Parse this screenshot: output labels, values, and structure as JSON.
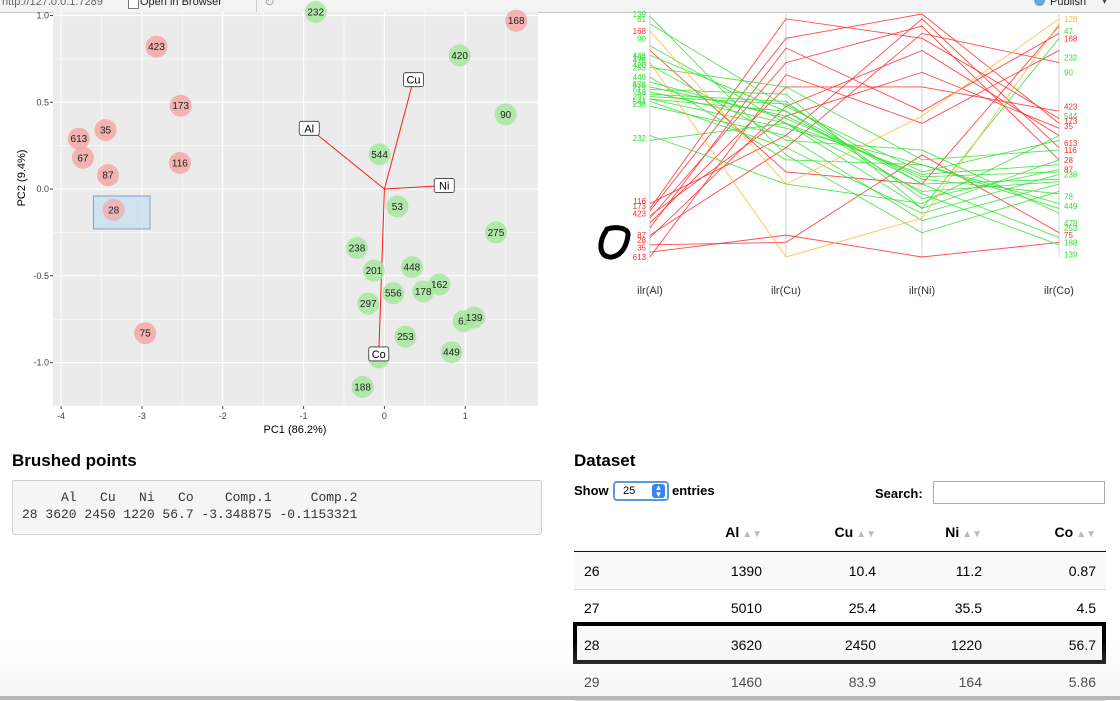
{
  "browser": {
    "url": "http://127.0.0.1:7289",
    "open_in_browser": "Open in Browser",
    "publish": "Publish"
  },
  "biplot": {
    "x_label": "PC1 (86.2%)",
    "y_label": "PC2 (9.4%)",
    "x_ticks": [
      -4,
      -3,
      -2,
      -1,
      0,
      1
    ],
    "y_ticks": [
      "1.0",
      "0.5",
      "0.0",
      "-0.5",
      "-1.0"
    ],
    "xlim": [
      -4.1,
      1.9
    ],
    "ylim": [
      -1.25,
      1.02
    ],
    "colors": {
      "red": "#f4a7a4",
      "green": "#a8e6a0",
      "arrow": "#ff1a1a",
      "panel": "#ebebeb",
      "brush": "#c9def1"
    },
    "brush": {
      "x": [
        -3.6,
        -2.9
      ],
      "y": [
        -0.23,
        -0.04
      ]
    },
    "points": [
      {
        "id": "232",
        "x": -0.85,
        "y": 1.02,
        "color": "green"
      },
      {
        "id": "168",
        "x": 1.63,
        "y": 0.97,
        "color": "red"
      },
      {
        "id": "423",
        "x": -2.82,
        "y": 0.82,
        "color": "red"
      },
      {
        "id": "420",
        "x": 0.93,
        "y": 0.77,
        "color": "green"
      },
      {
        "id": "173",
        "x": -2.52,
        "y": 0.48,
        "color": "red"
      },
      {
        "id": "90",
        "x": 1.5,
        "y": 0.43,
        "color": "green"
      },
      {
        "id": "35",
        "x": -3.45,
        "y": 0.34,
        "color": "red"
      },
      {
        "id": "613",
        "x": -3.78,
        "y": 0.29,
        "color": "red"
      },
      {
        "id": "67",
        "x": -3.73,
        "y": 0.18,
        "color": "red"
      },
      {
        "id": "544",
        "x": -0.06,
        "y": 0.2,
        "color": "green"
      },
      {
        "id": "116",
        "x": -2.53,
        "y": 0.15,
        "color": "red"
      },
      {
        "id": "87",
        "x": -3.42,
        "y": 0.08,
        "color": "red"
      },
      {
        "id": "28",
        "x": -3.35,
        "y": -0.12,
        "color": "red"
      },
      {
        "id": "53",
        "x": 0.16,
        "y": -0.1,
        "color": "green"
      },
      {
        "id": "275",
        "x": 1.38,
        "y": -0.25,
        "color": "green"
      },
      {
        "id": "238",
        "x": -0.34,
        "y": -0.34,
        "color": "green"
      },
      {
        "id": "201",
        "x": -0.13,
        "y": -0.47,
        "color": "green"
      },
      {
        "id": "448",
        "x": 0.34,
        "y": -0.45,
        "color": "green"
      },
      {
        "id": "162",
        "x": 0.68,
        "y": -0.55,
        "color": "green"
      },
      {
        "id": "556",
        "x": 0.11,
        "y": -0.6,
        "color": "green"
      },
      {
        "id": "178",
        "x": 0.48,
        "y": -0.59,
        "color": "green"
      },
      {
        "id": "297",
        "x": -0.2,
        "y": -0.66,
        "color": "green"
      },
      {
        "id": "61",
        "x": 0.98,
        "y": -0.76,
        "color": "green"
      },
      {
        "id": "139",
        "x": 1.11,
        "y": -0.74,
        "color": "green"
      },
      {
        "id": "75",
        "x": -2.96,
        "y": -0.83,
        "color": "red"
      },
      {
        "id": "253",
        "x": 0.26,
        "y": -0.85,
        "color": "green"
      },
      {
        "id": "449",
        "x": 0.83,
        "y": -0.94,
        "color": "green"
      },
      {
        "id": "478",
        "x": -0.07,
        "y": -0.97,
        "color": "green"
      },
      {
        "id": "188",
        "x": -0.27,
        "y": -1.14,
        "color": "green"
      }
    ],
    "arrows": [
      {
        "label": "Cu",
        "x": 0.36,
        "y": 0.63
      },
      {
        "label": "Al",
        "x": -0.93,
        "y": 0.35
      },
      {
        "label": "Ni",
        "x": 0.74,
        "y": 0.02
      },
      {
        "label": "Co",
        "x": -0.07,
        "y": -0.95
      }
    ]
  },
  "parcoord": {
    "axes": [
      "ilr(Al)",
      "ilr(Cu)",
      "ilr(Ni)",
      "ilr(Co)"
    ],
    "colors": {
      "red": "#ff2a2a",
      "green": "#33e033",
      "orange": "#ffb732",
      "axis": "#d0d0d0"
    },
    "series": [
      {
        "color": "red",
        "v": [
          0.19,
          0.9,
          1.0,
          0.55
        ]
      },
      {
        "color": "red",
        "v": [
          0.16,
          0.8,
          0.95,
          0.4
        ]
      },
      {
        "color": "red",
        "v": [
          0.2,
          0.98,
          0.9,
          0.57
        ]
      },
      {
        "color": "red",
        "v": [
          0.08,
          0.62,
          0.85,
          0.5
        ]
      },
      {
        "color": "red",
        "v": [
          0.22,
          0.5,
          0.98,
          0.45
        ]
      },
      {
        "color": "red",
        "v": [
          0.17,
          0.58,
          0.76,
          0.53
        ]
      },
      {
        "color": "red",
        "v": [
          0.05,
          0.06,
          0.42,
          0.1
        ]
      },
      {
        "color": "red",
        "v": [
          0.0,
          0.75,
          0.55,
          0.85
        ]
      },
      {
        "color": "red",
        "v": [
          0.02,
          0.09,
          0.0,
          0.06
        ]
      },
      {
        "color": "red",
        "v": [
          0.12,
          0.86,
          0.6,
          0.92
        ]
      },
      {
        "color": "red",
        "v": [
          0.09,
          0.45,
          0.92,
          0.8
        ]
      },
      {
        "color": "red",
        "v": [
          0.14,
          0.7,
          0.7,
          0.6
        ]
      },
      {
        "color": "red",
        "v": [
          0.85,
          0.35,
          0.3,
          0.95
        ]
      },
      {
        "color": "green",
        "v": [
          0.96,
          0.62,
          0.35,
          0.48
        ]
      },
      {
        "color": "green",
        "v": [
          0.87,
          0.55,
          0.34,
          0.38
        ]
      },
      {
        "color": "green",
        "v": [
          0.83,
          0.6,
          0.3,
          0.32
        ]
      },
      {
        "color": "green",
        "v": [
          0.78,
          0.7,
          0.4,
          0.44
        ]
      },
      {
        "color": "green",
        "v": [
          0.79,
          0.48,
          0.44,
          0.18
        ]
      },
      {
        "color": "green",
        "v": [
          0.74,
          0.4,
          0.38,
          0.22
        ]
      },
      {
        "color": "green",
        "v": [
          0.72,
          0.57,
          0.33,
          0.35
        ]
      },
      {
        "color": "green",
        "v": [
          0.7,
          0.58,
          0.32,
          0.26
        ]
      },
      {
        "color": "green",
        "v": [
          0.69,
          0.67,
          0.2,
          0.4
        ]
      },
      {
        "color": "green",
        "v": [
          0.68,
          0.55,
          0.27,
          0.31
        ]
      },
      {
        "color": "green",
        "v": [
          0.67,
          0.64,
          0.24,
          0.36
        ]
      },
      {
        "color": "green",
        "v": [
          0.66,
          0.63,
          0.3,
          0.08
        ]
      },
      {
        "color": "green",
        "v": [
          0.65,
          0.53,
          0.38,
          0.2
        ]
      },
      {
        "color": "green",
        "v": [
          0.65,
          0.6,
          0.26,
          0.05
        ]
      },
      {
        "color": "green",
        "v": [
          0.64,
          0.45,
          0.18,
          0.34
        ]
      },
      {
        "color": "green",
        "v": [
          0.62,
          0.5,
          0.15,
          0.3
        ]
      },
      {
        "color": "green",
        "v": [
          0.5,
          0.3,
          0.22,
          0.5
        ]
      },
      {
        "color": "green",
        "v": [
          0.48,
          0.55,
          0.2,
          0.9
        ]
      },
      {
        "color": "green",
        "v": [
          0.99,
          0.42,
          0.1,
          0.27
        ]
      },
      {
        "color": "orange",
        "v": [
          0.93,
          0.3,
          0.58,
          0.98
        ]
      },
      {
        "color": "orange",
        "v": [
          0.8,
          0.0,
          0.16,
          0.96
        ]
      }
    ],
    "left_labels": [
      {
        "id": "139",
        "v": 1.0,
        "color": "green"
      },
      {
        "id": "61",
        "v": 0.98,
        "color": "green"
      },
      {
        "id": "168",
        "v": 0.93,
        "color": "red"
      },
      {
        "id": "90",
        "v": 0.9,
        "color": "green"
      },
      {
        "id": "448",
        "v": 0.83,
        "color": "green"
      },
      {
        "id": "162",
        "v": 0.82,
        "color": "green"
      },
      {
        "id": "478",
        "v": 0.81,
        "color": "green"
      },
      {
        "id": "420",
        "v": 0.79,
        "color": "green"
      },
      {
        "id": "253",
        "v": 0.78,
        "color": "green"
      },
      {
        "id": "448",
        "v": 0.74,
        "color": "green"
      },
      {
        "id": "556",
        "v": 0.71,
        "color": "green"
      },
      {
        "id": "471",
        "v": 0.71,
        "color": "green"
      },
      {
        "id": "613",
        "v": 0.69,
        "color": "green"
      },
      {
        "id": "53",
        "v": 0.68,
        "color": "green"
      },
      {
        "id": "297",
        "v": 0.66,
        "color": "green"
      },
      {
        "id": "544",
        "v": 0.64,
        "color": "green"
      },
      {
        "id": "238",
        "v": 0.63,
        "color": "green"
      },
      {
        "id": "232",
        "v": 0.49,
        "color": "green"
      },
      {
        "id": "116",
        "v": 0.23,
        "color": "red"
      },
      {
        "id": "173",
        "v": 0.21,
        "color": "red"
      },
      {
        "id": "423",
        "v": 0.18,
        "color": "red"
      },
      {
        "id": "87",
        "v": 0.09,
        "color": "red"
      },
      {
        "id": "28",
        "v": 0.07,
        "color": "red"
      },
      {
        "id": "35",
        "v": 0.04,
        "color": "red"
      },
      {
        "id": "613",
        "v": 0.0,
        "color": "red"
      }
    ],
    "right_labels": [
      {
        "id": "128",
        "v": 0.98,
        "color": "orange"
      },
      {
        "id": "47",
        "v": 0.93,
        "color": "green"
      },
      {
        "id": "168",
        "v": 0.9,
        "color": "red"
      },
      {
        "id": "232",
        "v": 0.82,
        "color": "green"
      },
      {
        "id": "90",
        "v": 0.76,
        "color": "green"
      },
      {
        "id": "423",
        "v": 0.62,
        "color": "red"
      },
      {
        "id": "544",
        "v": 0.58,
        "color": "green"
      },
      {
        "id": "173",
        "v": 0.56,
        "color": "red"
      },
      {
        "id": "35",
        "v": 0.54,
        "color": "red"
      },
      {
        "id": "613",
        "v": 0.47,
        "color": "red"
      },
      {
        "id": "116",
        "v": 0.44,
        "color": "red"
      },
      {
        "id": "28",
        "v": 0.4,
        "color": "red"
      },
      {
        "id": "87",
        "v": 0.36,
        "color": "red"
      },
      {
        "id": "238",
        "v": 0.34,
        "color": "green"
      },
      {
        "id": "78",
        "v": 0.25,
        "color": "green"
      },
      {
        "id": "449",
        "v": 0.21,
        "color": "green"
      },
      {
        "id": "478",
        "v": 0.14,
        "color": "green"
      },
      {
        "id": "253",
        "v": 0.12,
        "color": "green"
      },
      {
        "id": "75",
        "v": 0.09,
        "color": "red"
      },
      {
        "id": "188",
        "v": 0.06,
        "color": "green"
      },
      {
        "id": "139",
        "v": 0.01,
        "color": "green"
      }
    ]
  },
  "brushed": {
    "title": "Brushed points",
    "output": "     Al   Cu   Ni   Co    Comp.1     Comp.2\n28 3620 2450 1220 56.7 -3.348875 -0.1153321"
  },
  "dataset": {
    "title": "Dataset",
    "show_label": "Show",
    "entries_value": "25",
    "entries_label": "entries",
    "search_label": "Search:",
    "search_value": "",
    "columns": [
      "",
      "Al",
      "Cu",
      "Ni",
      "Co"
    ],
    "rows": [
      [
        "26",
        "1390",
        "10.4",
        "11.2",
        "0.87"
      ],
      [
        "27",
        "5010",
        "25.4",
        "35.5",
        "4.5"
      ],
      [
        "28",
        "3620",
        "2450",
        "1220",
        "56.7"
      ],
      [
        "29",
        "1460",
        "83.9",
        "164",
        "5.86"
      ]
    ]
  }
}
